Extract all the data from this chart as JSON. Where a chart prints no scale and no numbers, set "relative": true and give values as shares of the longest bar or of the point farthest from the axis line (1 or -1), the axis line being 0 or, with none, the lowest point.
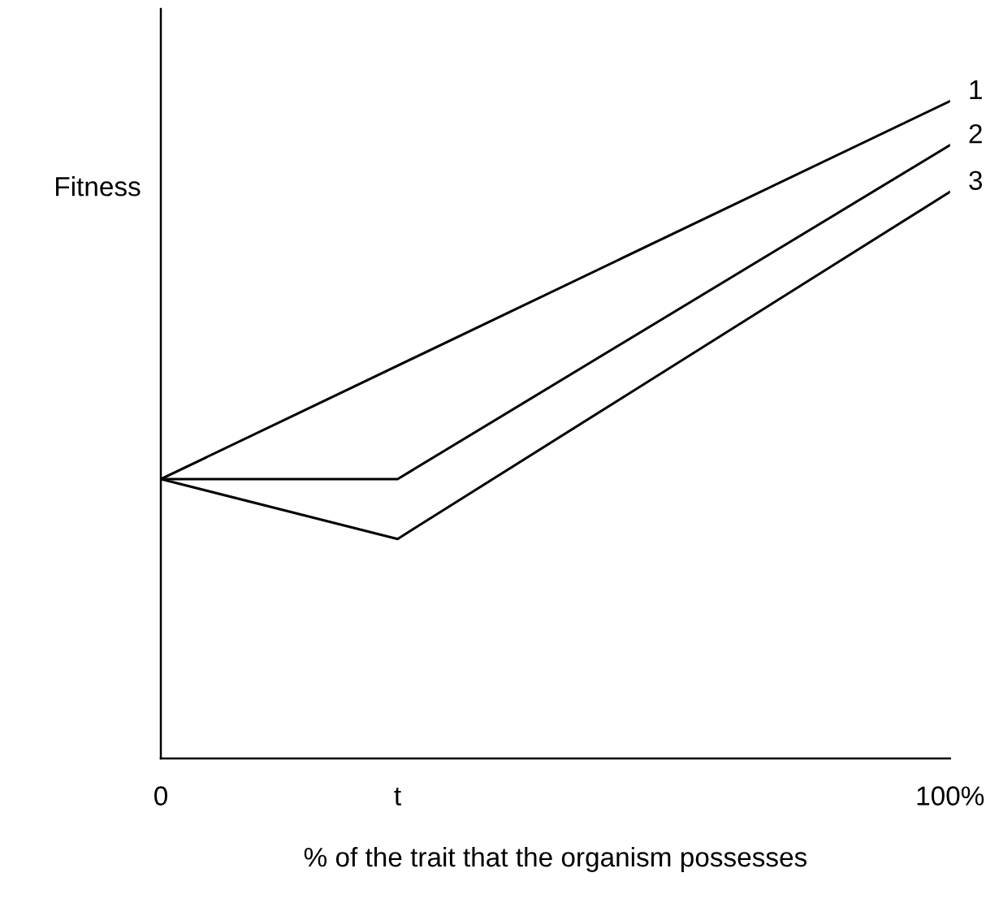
{
  "chart_data": {
    "type": "line",
    "relative": true,
    "ylabel": "Fitness",
    "xlabel": "% of the trait that the organism possesses",
    "xlim": [
      0,
      100
    ],
    "xticks": [
      0,
      {
        "value": 30,
        "label": "t"
      },
      {
        "value": 100,
        "label": "100%"
      }
    ],
    "tick_labels": "x",
    "grid": false,
    "legend": false,
    "marker": "none",
    "line_style": "solid",
    "series": [
      {
        "name": "1",
        "color": "#000000",
        "x": [
          0,
          100
        ],
        "values": [
          0.425,
          1
        ]
      },
      {
        "name": "2",
        "color": "#000000",
        "x": [
          0,
          30,
          100
        ],
        "values": [
          0.425,
          0.425,
          0.933
        ]
      },
      {
        "name": "3",
        "color": "#000000",
        "x": [
          0,
          30,
          100
        ],
        "values": [
          0.425,
          0.334,
          0.862
        ]
      }
    ]
  }
}
